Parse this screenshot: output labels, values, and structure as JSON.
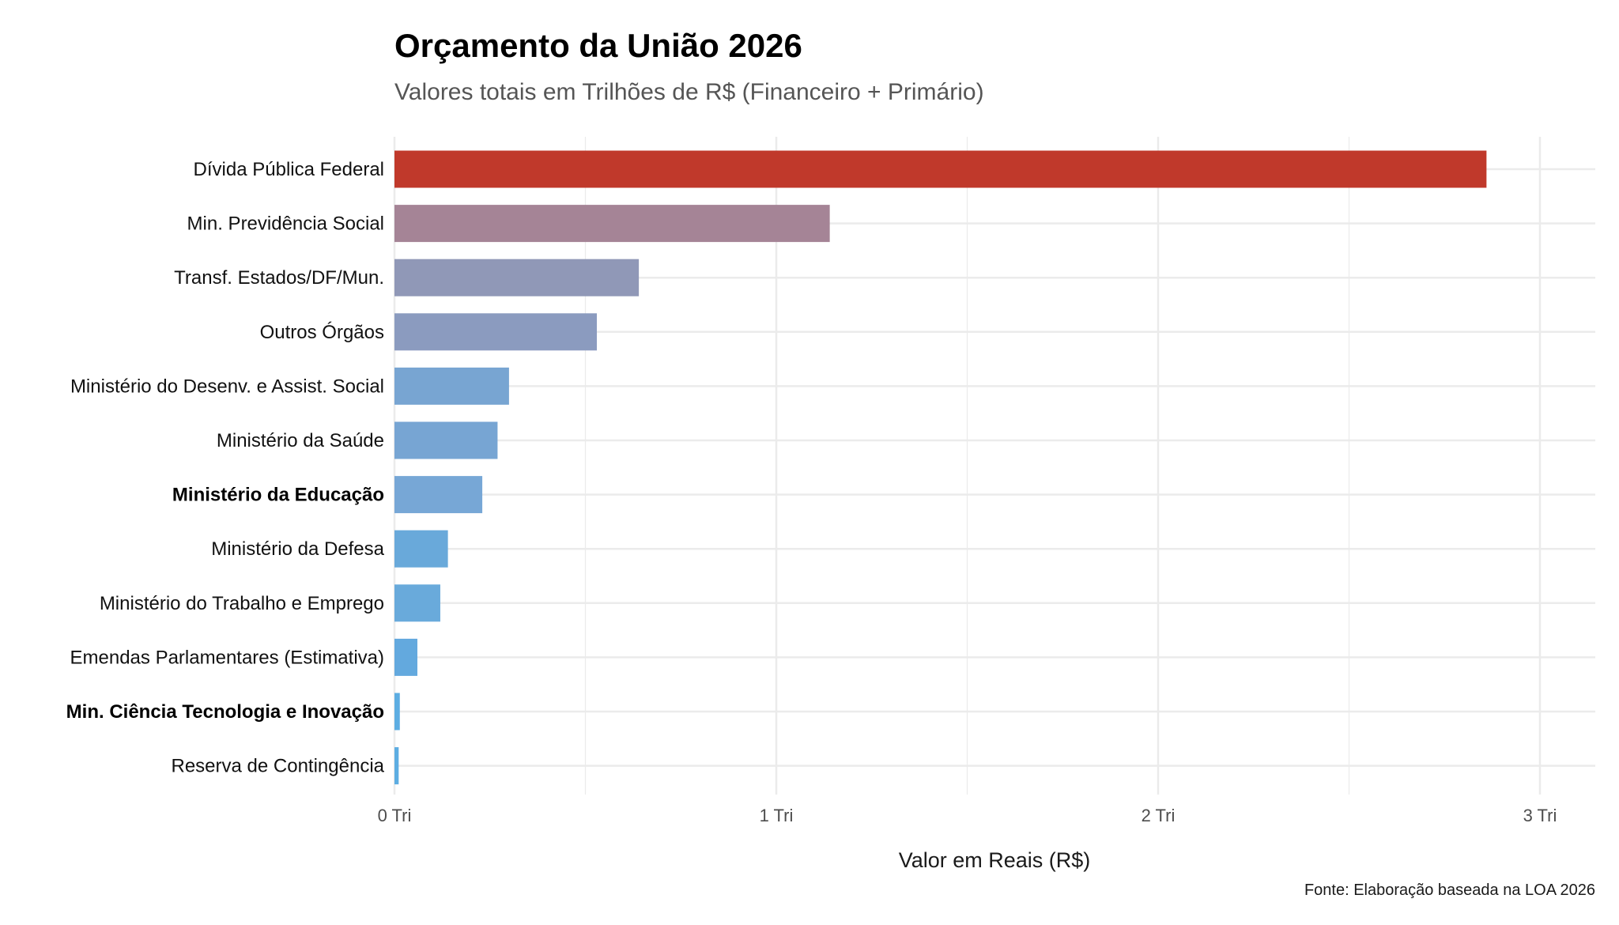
{
  "chart_data": {
    "type": "bar",
    "orientation": "horizontal",
    "title": "Orçamento da União 2026",
    "subtitle": "Valores totais em Trilhões de R$ (Financeiro + Primário)",
    "xlabel": "Valor em Reais (R$)",
    "ylabel": "",
    "caption": "Fonte: Elaboração baseada na LOA 2026",
    "xlim": [
      0,
      3.15
    ],
    "xticks": [
      0,
      1,
      2,
      3
    ],
    "xtick_labels": [
      "0 Tri",
      "1 Tri",
      "2 Tri",
      "3 Tri"
    ],
    "grid": true,
    "categories": [
      "Dívida Pública Federal",
      "Min. Previdência Social",
      "Transf. Estados/DF/Mun.",
      "Outros Órgãos",
      "Ministério do Desenv. e Assist. Social",
      "Ministério da Saúde",
      "Ministério da Educação",
      "Ministério da Defesa",
      "Ministério do Trabalho e Emprego",
      "Emendas Parlamentares (Estimativa)",
      "Min. Ciência Tecnologia e Inovação",
      "Reserva de Contingência"
    ],
    "values": [
      2.86,
      1.14,
      0.64,
      0.53,
      0.3,
      0.27,
      0.23,
      0.14,
      0.12,
      0.06,
      0.014,
      0.011
    ],
    "bold_categories": [
      "Ministério da Educação",
      "Min. Ciência Tecnologia e Inovação"
    ],
    "colors": [
      "#C0392B",
      "#A58496",
      "#9098B7",
      "#8B9BBF",
      "#78A5D2",
      "#77A5D3",
      "#77A7D6",
      "#69A9DA",
      "#69AADB",
      "#63A9DE",
      "#5DADE2",
      "#5DADE2"
    ]
  }
}
